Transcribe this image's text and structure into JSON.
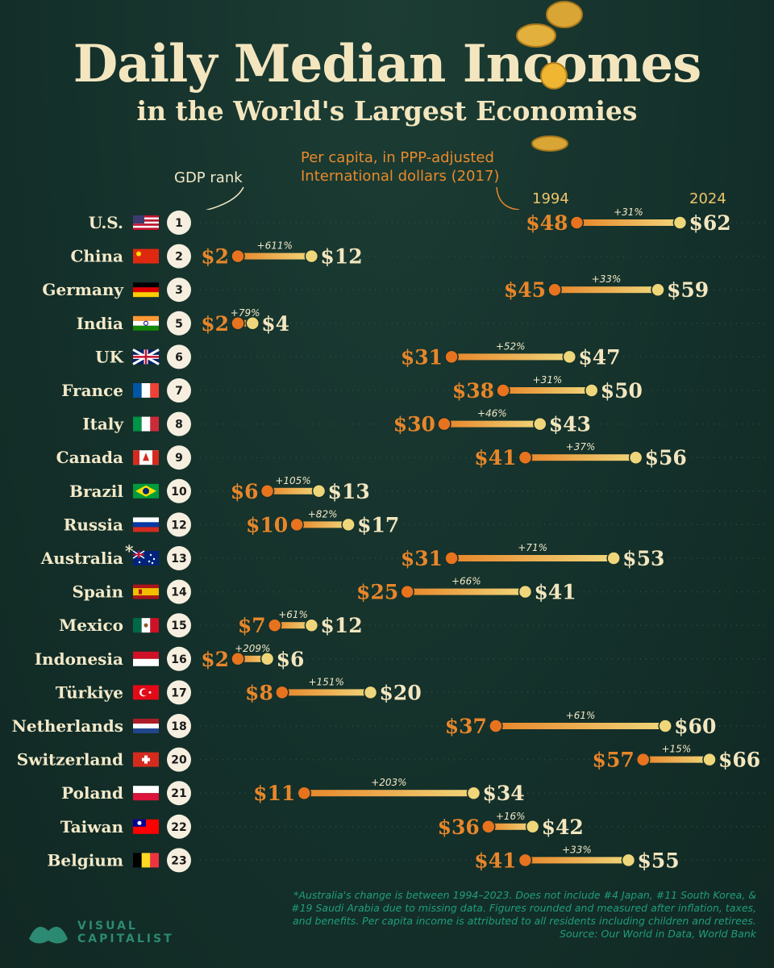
{
  "title": "Daily Median Incomes",
  "subtitle": "in the World's Largest Economies",
  "note": "Per capita, in PPP-adjusted International dollars (2017)",
  "gdp_rank_label": "GDP rank",
  "footnote": "*Australia's change is between 1994–2023. Does not include #4 Japan, #11 South Korea, & #19 Saudi Arabia due to missing data. Figures rounded and measured after inflation, taxes, and benefits. Per capita income is attributed to all residents including children and retirees. Source: Our World in Data, World Bank",
  "logo": {
    "line1": "VISUAL",
    "line2": "CAPITALIST"
  },
  "colors": {
    "background": "#14302a",
    "start": "#e8862a",
    "end": "#f0d67a",
    "text": "#f2e9c9",
    "footnote": "#1f9e7e"
  },
  "chart_data": {
    "type": "dumbbell",
    "title": "Daily Median Incomes",
    "subtitle": "in the World's Largest Economies",
    "start_label": "1994",
    "end_label": "2024",
    "x_range": [
      0,
      70
    ],
    "rows": [
      {
        "country": "U.S.",
        "flag": "us",
        "rank": "1",
        "start": 48,
        "end": 62,
        "change": "+31%"
      },
      {
        "country": "China",
        "flag": "cn",
        "rank": "2",
        "start": 2,
        "end": 12,
        "change": "+611%"
      },
      {
        "country": "Germany",
        "flag": "de",
        "rank": "3",
        "start": 45,
        "end": 59,
        "change": "+33%"
      },
      {
        "country": "India",
        "flag": "in",
        "rank": "5",
        "start": 2,
        "end": 4,
        "change": "+79%"
      },
      {
        "country": "UK",
        "flag": "uk",
        "rank": "6",
        "start": 31,
        "end": 47,
        "change": "+52%"
      },
      {
        "country": "France",
        "flag": "fr",
        "rank": "7",
        "start": 38,
        "end": 50,
        "change": "+31%"
      },
      {
        "country": "Italy",
        "flag": "it",
        "rank": "8",
        "start": 30,
        "end": 43,
        "change": "+46%"
      },
      {
        "country": "Canada",
        "flag": "ca",
        "rank": "9",
        "start": 41,
        "end": 56,
        "change": "+37%"
      },
      {
        "country": "Brazil",
        "flag": "br",
        "rank": "10",
        "start": 6,
        "end": 13,
        "change": "+105%"
      },
      {
        "country": "Russia",
        "flag": "ru",
        "rank": "12",
        "start": 10,
        "end": 17,
        "change": "+82%"
      },
      {
        "country": "Australia",
        "asterisk": "*",
        "flag": "au",
        "rank": "13",
        "start": 31,
        "end": 53,
        "change": "+71%"
      },
      {
        "country": "Spain",
        "flag": "es",
        "rank": "14",
        "start": 25,
        "end": 41,
        "change": "+66%"
      },
      {
        "country": "Mexico",
        "flag": "mx",
        "rank": "15",
        "start": 7,
        "end": 12,
        "change": "+61%"
      },
      {
        "country": "Indonesia",
        "flag": "id",
        "rank": "16",
        "start": 2,
        "end": 6,
        "change": "+209%"
      },
      {
        "country": "Türkiye",
        "flag": "tr",
        "rank": "17",
        "start": 8,
        "end": 20,
        "change": "+151%"
      },
      {
        "country": "Netherlands",
        "flag": "nl",
        "rank": "18",
        "start": 37,
        "end": 60,
        "change": "+61%"
      },
      {
        "country": "Switzerland",
        "flag": "ch",
        "rank": "20",
        "start": 57,
        "end": 66,
        "change": "+15%"
      },
      {
        "country": "Poland",
        "flag": "pl",
        "rank": "21",
        "start": 11,
        "end": 34,
        "change": "+203%"
      },
      {
        "country": "Taiwan",
        "flag": "tw",
        "rank": "22",
        "start": 36,
        "end": 42,
        "change": "+16%"
      },
      {
        "country": "Belgium",
        "flag": "be",
        "rank": "23",
        "start": 41,
        "end": 55,
        "change": "+33%"
      }
    ]
  }
}
